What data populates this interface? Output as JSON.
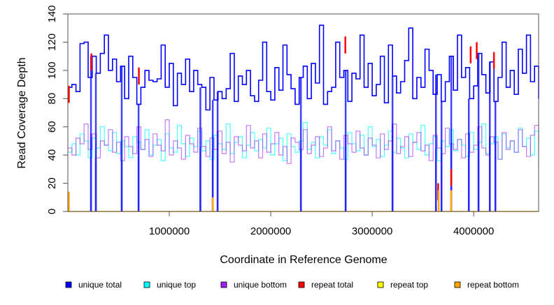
{
  "chart_data": {
    "type": "line",
    "title": "",
    "xlabel": "Coordinate in Reference Genome",
    "ylabel": "Read Coverage Depth",
    "xlim": [
      0,
      4640000
    ],
    "ylim": [
      0,
      140
    ],
    "x_ticks": [
      1000000,
      2000000,
      3000000,
      4000000
    ],
    "x_tick_labels": [
      "1000000",
      "2000000",
      "3000000",
      "4000000"
    ],
    "y_ticks": [
      0,
      20,
      40,
      60,
      80,
      100,
      120,
      140
    ],
    "y_tick_labels": [
      "0",
      "20",
      "40",
      "60",
      "80",
      "100",
      "120",
      "140"
    ],
    "legend_placement": "bottom",
    "x_start": 0,
    "x_end": 4640000,
    "series": [
      {
        "name": "unique top",
        "color": "#00FFFF",
        "values": [
          42,
          48,
          40,
          55,
          50,
          38,
          52,
          45,
          60,
          47,
          43,
          56,
          41,
          50,
          46,
          38,
          53,
          49,
          44,
          58,
          40,
          47,
          51,
          36,
          55,
          45,
          42,
          61,
          48,
          39,
          52,
          46,
          57,
          43,
          50,
          37,
          54,
          48,
          44,
          62,
          41,
          49,
          53,
          38,
          47,
          56,
          43,
          51,
          45,
          59,
          40,
          48,
          52,
          36,
          55,
          46,
          42,
          50,
          63,
          44,
          49,
          38,
          53,
          47,
          58,
          41,
          50,
          45,
          37,
          56,
          48,
          43,
          54,
          40,
          60,
          46,
          51,
          39,
          47,
          57,
          42,
          52,
          45,
          38,
          55,
          49,
          44,
          61,
          40,
          48,
          53,
          36,
          50,
          46,
          58,
          43,
          51,
          47,
          39,
          56,
          44,
          49,
          62,
          41,
          48,
          53,
          37,
          55,
          45,
          50,
          42,
          59,
          46,
          52,
          40,
          57,
          31
        ]
      },
      {
        "name": "unique bottom",
        "color": "#A020F0",
        "values": [
          45,
          40,
          52,
          48,
          62,
          44,
          55,
          38,
          50,
          47,
          58,
          42,
          49,
          36,
          53,
          46,
          41,
          60,
          44,
          51,
          39,
          55,
          47,
          43,
          65,
          40,
          50,
          45,
          37,
          54,
          48,
          42,
          59,
          46,
          39,
          52,
          44,
          57,
          41,
          49,
          35,
          53,
          47,
          43,
          61,
          45,
          50,
          38,
          55,
          42,
          48,
          56,
          40,
          46,
          34,
          52,
          49,
          44,
          58,
          41,
          47,
          53,
          39,
          45,
          60,
          43,
          50,
          37,
          54,
          48,
          42,
          57,
          45,
          40,
          52,
          47,
          38,
          55,
          44,
          50,
          62,
          41,
          46,
          53,
          39,
          49,
          56,
          43,
          47,
          36,
          54,
          45,
          41,
          59,
          48,
          44,
          51,
          38,
          55,
          42,
          47,
          60,
          45,
          40,
          53,
          49,
          37,
          56,
          44,
          50,
          42,
          58,
          46,
          39,
          54,
          61,
          48
        ]
      },
      {
        "name": "unique total",
        "color": "#0000FF",
        "values": [
          88,
          90,
          85,
          119,
          120,
          95,
          110,
          98,
          112,
          125,
          100,
          108,
          92,
          103,
          80,
          110,
          95,
          76,
          88,
          100,
          93,
          92,
          94,
          118,
          88,
          105,
          75,
          98,
          90,
          108,
          85,
          100,
          90,
          88,
          72,
          95,
          79,
          85,
          80,
          87,
          112,
          78,
          96,
          90,
          100,
          82,
          78,
          93,
          120,
          85,
          79,
          102,
          86,
          118,
          97,
          87,
          76,
          95,
          103,
          80,
          105,
          91,
          132,
          76,
          85,
          88,
          120,
          95,
          100,
          78,
          98,
          94,
          125,
          88,
          105,
          82,
          90,
          110,
          77,
          118,
          96,
          84,
          92,
          107,
          130,
          80,
          95,
          88,
          115,
          100,
          83,
          97,
          78,
          92,
          110,
          86,
          125,
          95,
          102,
          80,
          89,
          112,
          97,
          84,
          106,
          78,
          95,
          120,
          88,
          100,
          83,
          115,
          98,
          125,
          92,
          103,
          80
        ]
      }
    ],
    "dropouts": [
      228000,
      276000,
      531000,
      697000,
      1306000,
      1428000,
      1476000,
      2297000,
      2738000,
      3200000,
      3628000,
      3683000,
      3779000,
      3952000,
      4048000,
      4159000,
      4214000
    ],
    "repeat_total": [
      {
        "x": 10000,
        "y": 89
      },
      {
        "x": 232000,
        "y": 112
      },
      {
        "x": 700000,
        "y": 102
      },
      {
        "x": 2735000,
        "y": 124
      },
      {
        "x": 3650000,
        "y": 20
      },
      {
        "x": 3779000,
        "y": 30
      },
      {
        "x": 3970000,
        "y": 117
      },
      {
        "x": 4030000,
        "y": 120
      },
      {
        "x": 4200000,
        "y": 113
      }
    ],
    "repeat_top": [],
    "repeat_bottom": [
      {
        "x": 10000,
        "y": 14
      },
      {
        "x": 1428000,
        "y": 10
      },
      {
        "x": 3655000,
        "y": 15
      },
      {
        "x": 3779000,
        "y": 15
      }
    ],
    "legend": [
      {
        "label": "unique total",
        "color": "#0000FF"
      },
      {
        "label": "unique top",
        "color": "#00FFFF"
      },
      {
        "label": "unique bottom",
        "color": "#A020F0"
      },
      {
        "label": "repeat total",
        "color": "#FF0000"
      },
      {
        "label": "repeat top",
        "color": "#FFFF00"
      },
      {
        "label": "repeat bottom",
        "color": "#FFA500"
      }
    ]
  }
}
